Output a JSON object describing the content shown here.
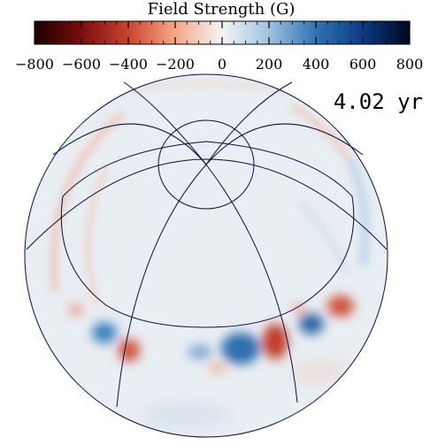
{
  "colorbar": {
    "title": "Field Strength (G)",
    "min": -800,
    "max": 800,
    "tick_labels": [
      "−800",
      "−600",
      "−400",
      "−200",
      "0",
      "200",
      "400",
      "600",
      "800"
    ],
    "tick_values": [
      -800,
      -600,
      -400,
      -200,
      0,
      200,
      400,
      600,
      800
    ],
    "minor_step": 50,
    "colormap": [
      "#1a0000",
      "#7a0e0e",
      "#c9442f",
      "#f6a785",
      "#f4f4f4",
      "#9fc3df",
      "#2f73b3",
      "#0b3b83",
      "#000824"
    ]
  },
  "time_label": "4.02 yr",
  "colors": {
    "neutral": "#e9eef3",
    "grid": "#0a0f3c",
    "positive": "#2f73b3",
    "negative": "#c9442f"
  }
}
